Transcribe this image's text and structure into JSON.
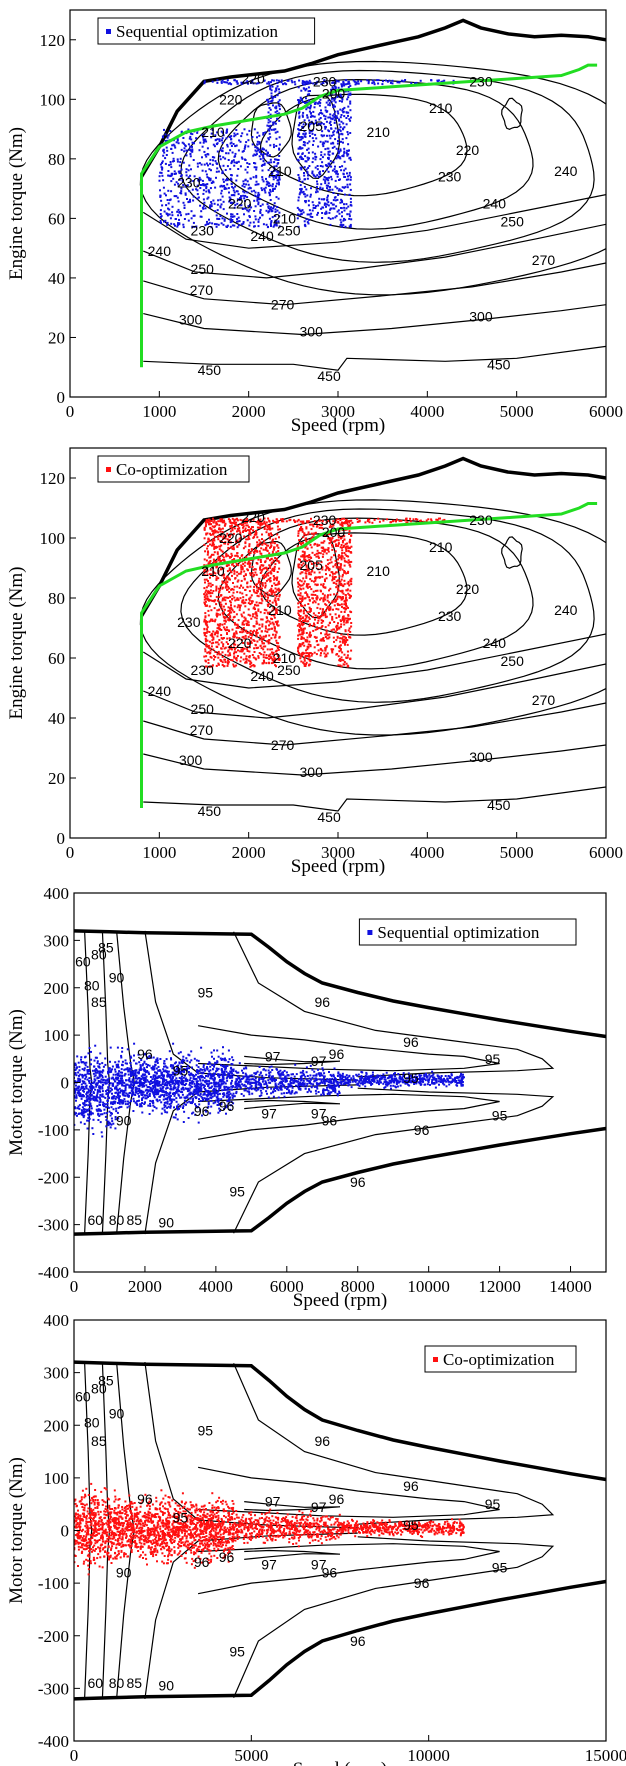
{
  "colors": {
    "axes": "#000000",
    "contour": "#000000",
    "boundary": "#000000",
    "sequential": "#1010e0",
    "co_optimization": "#ff1010",
    "operating_line": "#22dd22"
  },
  "chart_data": [
    {
      "type": "scatter",
      "subtype": "engine efficiency map with operating points",
      "xlabel": "Speed (rpm)",
      "ylabel": "Engine torque (Nm)",
      "xlim": [
        0,
        6000
      ],
      "ylim": [
        0,
        130
      ],
      "xticks": [
        0,
        1000,
        2000,
        3000,
        4000,
        5000,
        6000
      ],
      "yticks": [
        0,
        20,
        40,
        60,
        80,
        100,
        120
      ],
      "legend": {
        "label": "Sequential optimization",
        "position": "top-left"
      },
      "series": [
        {
          "name": "Sequential optimization",
          "color": "#1010e0",
          "clusters": [
            {
              "x_range": [
                1000,
                2200
              ],
              "y_range": [
                57,
                90
              ],
              "density": 700
            },
            {
              "x_range": [
                2200,
                2350
              ],
              "y_range": [
                57,
                106
              ],
              "density": 200
            },
            {
              "x_range": [
                2550,
                2700
              ],
              "y_range": [
                57,
                106
              ],
              "density": 200
            },
            {
              "x_range": [
                2700,
                2900
              ],
              "y_range": [
                60,
                100
              ],
              "density": 180
            },
            {
              "x_range": [
                2900,
                3150
              ],
              "y_range": [
                57,
                106
              ],
              "density": 300
            },
            {
              "x_range": [
                1500,
                4300
              ],
              "y_range": [
                105,
                106.5
              ],
              "density": 140
            }
          ]
        }
      ],
      "max_torque_curve": {
        "x": [
          800,
          1000,
          1200,
          1500,
          1800,
          2100,
          2400,
          2700,
          3000,
          3300,
          3600,
          3900,
          4200,
          4400,
          4600,
          4900,
          5200,
          5500,
          5800,
          6000
        ],
        "y": [
          74,
          84,
          96,
          106,
          107.5,
          108.5,
          109.5,
          112,
          115,
          117,
          119,
          121,
          124,
          126.5,
          124,
          122,
          121,
          121.5,
          121,
          120
        ]
      },
      "operating_line": {
        "x": [
          800,
          800,
          1000,
          1300,
          1600,
          2000,
          2400,
          2600,
          2800,
          3000,
          3500,
          4000,
          4500,
          5000,
          5500,
          5700,
          5800,
          5900
        ],
        "y": [
          10,
          75,
          84,
          89,
          91,
          93,
          95,
          97,
          101,
          103,
          104,
          105,
          106,
          107,
          108,
          110,
          111.5,
          111.5
        ]
      },
      "contour_labels": [
        "220",
        "230",
        "230",
        "220",
        "210",
        "205",
        "200",
        "210",
        "210",
        "220",
        "230",
        "240",
        "250",
        "270",
        "250",
        "240",
        "230",
        "240",
        "250",
        "270",
        "300",
        "450",
        "300",
        "270",
        "450",
        "450",
        "300",
        "230",
        "220",
        "210",
        "210",
        "240"
      ]
    },
    {
      "type": "scatter",
      "subtype": "engine efficiency map with operating points",
      "xlabel": "Speed (rpm)",
      "ylabel": "Engine torque (Nm)",
      "xlim": [
        0,
        6000
      ],
      "ylim": [
        0,
        130
      ],
      "xticks": [
        0,
        1000,
        2000,
        3000,
        4000,
        5000,
        6000
      ],
      "yticks": [
        0,
        20,
        40,
        60,
        80,
        100,
        120
      ],
      "legend": {
        "label": "Co-optimization",
        "position": "top-left"
      },
      "series": [
        {
          "name": "Co-optimization",
          "color": "#ff1010",
          "clusters": [
            {
              "x_range": [
                1500,
                2350
              ],
              "y_range": [
                57,
                106
              ],
              "density": 1400
            },
            {
              "x_range": [
                2550,
                2700
              ],
              "y_range": [
                57,
                106
              ],
              "density": 300
            },
            {
              "x_range": [
                2700,
                3000
              ],
              "y_range": [
                60,
                106
              ],
              "density": 350
            },
            {
              "x_range": [
                3000,
                3150
              ],
              "y_range": [
                57,
                106
              ],
              "density": 300
            },
            {
              "x_range": [
                1500,
                4200
              ],
              "y_range": [
                105,
                106.5
              ],
              "density": 140
            }
          ]
        }
      ],
      "max_torque_curve": {
        "x": [
          800,
          1000,
          1200,
          1500,
          1800,
          2100,
          2400,
          2700,
          3000,
          3300,
          3600,
          3900,
          4200,
          4400,
          4600,
          4900,
          5200,
          5500,
          5800,
          6000
        ],
        "y": [
          74,
          84,
          96,
          106,
          107.5,
          108.5,
          109.5,
          112,
          115,
          117,
          119,
          121,
          124,
          126.5,
          124,
          122,
          121,
          121.5,
          121,
          120
        ]
      },
      "operating_line": {
        "x": [
          800,
          800,
          1000,
          1300,
          1600,
          2000,
          2400,
          2600,
          2800,
          3000,
          3500,
          4000,
          4500,
          5000,
          5500,
          5700,
          5800,
          5900
        ],
        "y": [
          10,
          75,
          84,
          89,
          91,
          93,
          95,
          97,
          101,
          103,
          104,
          105,
          106,
          107,
          108,
          110,
          111.5,
          111.5
        ]
      },
      "contour_labels": [
        "220",
        "230",
        "230",
        "220",
        "210",
        "205",
        "200",
        "210",
        "210",
        "220",
        "230",
        "240",
        "250",
        "270",
        "250",
        "240",
        "230",
        "240",
        "250",
        "270",
        "300",
        "450",
        "300",
        "270",
        "450",
        "450",
        "300",
        "230",
        "220",
        "210",
        "210",
        "240"
      ]
    },
    {
      "type": "scatter",
      "subtype": "motor efficiency map with operating points",
      "xlabel": "Speed (rpm)",
      "ylabel": "Motor torque (Nm)",
      "xlim": [
        0,
        15000
      ],
      "ylim": [
        -400,
        400
      ],
      "xticks": [
        0,
        2000,
        4000,
        6000,
        8000,
        10000,
        12000,
        14000
      ],
      "yticks": [
        -400,
        -300,
        -200,
        -100,
        0,
        100,
        200,
        300,
        400
      ],
      "legend": {
        "label": "Sequential optimization",
        "position": "top-right"
      },
      "series": [
        {
          "name": "Sequential optimization",
          "color": "#1010e0",
          "clusters": [
            {
              "x_range": [
                0,
                1200
              ],
              "y_range": [
                -130,
                95
              ],
              "density": 500
            },
            {
              "x_range": [
                1200,
                4500
              ],
              "y_range": [
                -90,
                85
              ],
              "density": 1300
            },
            {
              "x_range": [
                4500,
                7500
              ],
              "y_range": [
                -40,
                45
              ],
              "density": 500
            },
            {
              "x_range": [
                7500,
                11000
              ],
              "y_range": [
                -15,
                25
              ],
              "density": 450
            }
          ]
        }
      ],
      "torque_envelope": {
        "x": [
          0,
          1000,
          2000,
          3000,
          4000,
          5000,
          5500,
          6000,
          6500,
          7000,
          8000,
          9000,
          10000,
          11000,
          12000,
          13000,
          14000,
          15000
        ],
        "y": [
          320,
          318,
          316,
          315,
          314,
          313,
          285,
          255,
          230,
          210,
          190,
          172,
          158,
          145,
          132,
          120,
          108,
          97
        ]
      },
      "contour_labels": [
        "60",
        "80",
        "85",
        "90",
        "80",
        "85",
        "95",
        "96",
        "96",
        "95",
        "96",
        "97",
        "97",
        "96",
        "95",
        "95",
        "96",
        "96",
        "97",
        "97",
        "96",
        "96",
        "95",
        "95",
        "96",
        "60",
        "80",
        "85",
        "90",
        "90"
      ]
    },
    {
      "type": "scatter",
      "subtype": "motor efficiency map with operating points",
      "xlabel": "Speed (rpm)",
      "ylabel": "Motor torque (Nm)",
      "xlim": [
        0,
        15000
      ],
      "ylim": [
        -400,
        400
      ],
      "xticks": [
        0,
        5000,
        10000,
        15000
      ],
      "yticks": [
        -400,
        -300,
        -200,
        -100,
        0,
        100,
        200,
        300,
        400
      ],
      "legend": {
        "label": "Co-optimization",
        "position": "top-right"
      },
      "series": [
        {
          "name": "Co-optimization",
          "color": "#ff1010",
          "clusters": [
            {
              "x_range": [
                0,
                1200
              ],
              "y_range": [
                -90,
                100
              ],
              "density": 500
            },
            {
              "x_range": [
                1200,
                4500
              ],
              "y_range": [
                -80,
                85
              ],
              "density": 1300
            },
            {
              "x_range": [
                4500,
                7500
              ],
              "y_range": [
                -35,
                45
              ],
              "density": 500
            },
            {
              "x_range": [
                7500,
                11000
              ],
              "y_range": [
                -15,
                25
              ],
              "density": 450
            }
          ]
        }
      ],
      "torque_envelope": {
        "x": [
          0,
          1000,
          2000,
          3000,
          4000,
          5000,
          5500,
          6000,
          6500,
          7000,
          8000,
          9000,
          10000,
          11000,
          12000,
          13000,
          14000,
          15000
        ],
        "y": [
          320,
          318,
          316,
          315,
          314,
          313,
          285,
          255,
          230,
          210,
          190,
          172,
          158,
          145,
          132,
          120,
          108,
          97
        ]
      },
      "contour_labels": [
        "60",
        "80",
        "85",
        "90",
        "80",
        "85",
        "95",
        "96",
        "96",
        "95",
        "96",
        "97",
        "97",
        "96",
        "95",
        "95",
        "96",
        "96",
        "97",
        "97",
        "96",
        "96",
        "95",
        "95",
        "96",
        "60",
        "80",
        "85",
        "90",
        "90"
      ]
    }
  ]
}
